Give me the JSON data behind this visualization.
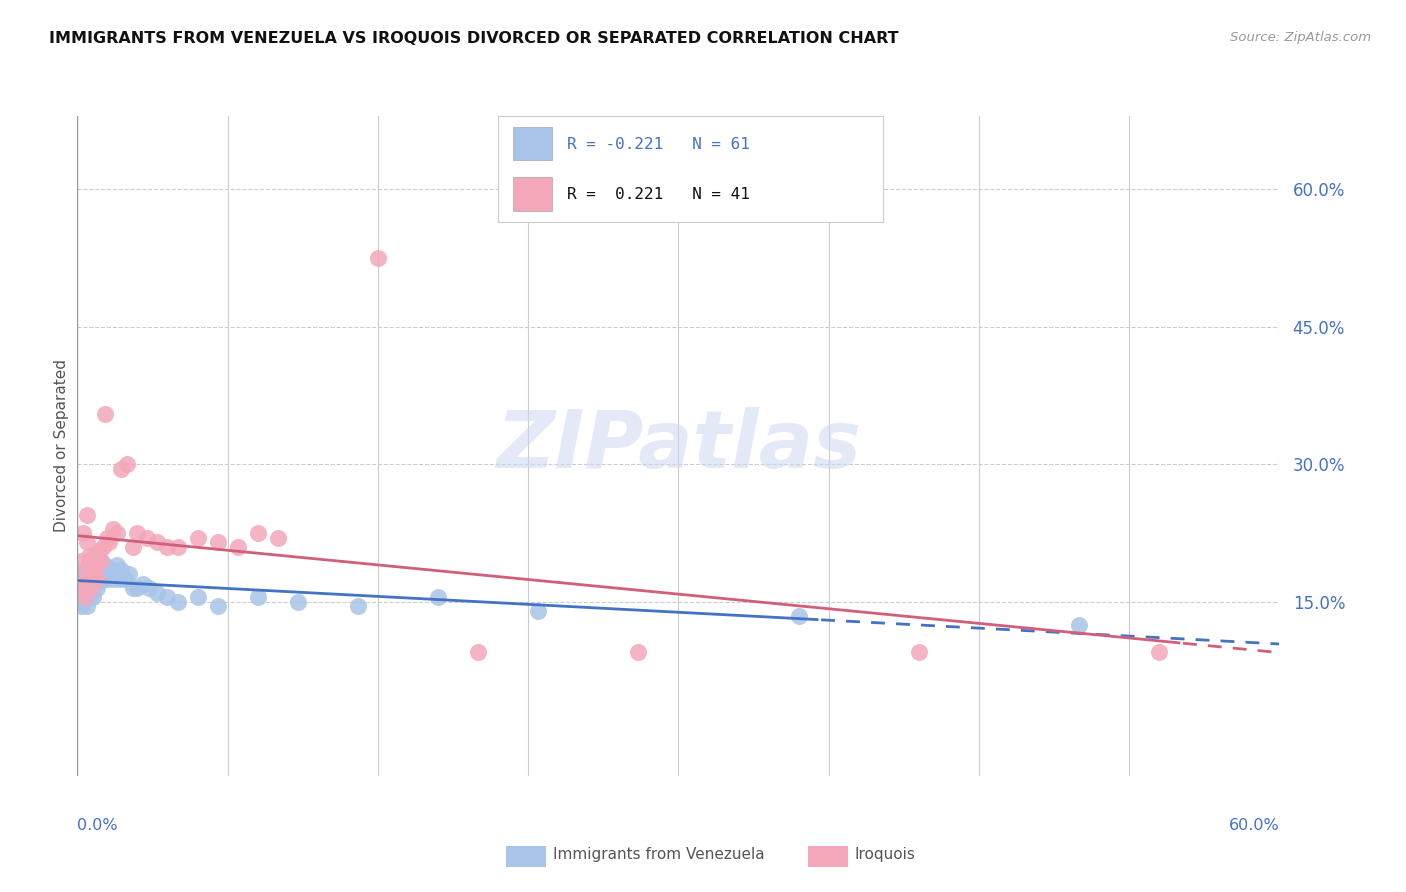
{
  "title": "IMMIGRANTS FROM VENEZUELA VS IROQUOIS DIVORCED OR SEPARATED CORRELATION CHART",
  "source": "Source: ZipAtlas.com",
  "ylabel": "Divorced or Separated",
  "xlim": [
    0.0,
    0.6
  ],
  "ylim": [
    -0.04,
    0.68
  ],
  "right_yticks": [
    0.15,
    0.3,
    0.45,
    0.6
  ],
  "right_yticklabels": [
    "15.0%",
    "30.0%",
    "45.0%",
    "60.0%"
  ],
  "legend_r1": "R = -0.221   N = 61",
  "legend_r2": "R =  0.221   N = 41",
  "blue_color": "#a8c4e8",
  "pink_color": "#f4a7b9",
  "blue_line_color": "#4472c4",
  "pink_line_color": "#d0607a",
  "venezuela_x": [
    0.001,
    0.002,
    0.002,
    0.002,
    0.003,
    0.003,
    0.003,
    0.004,
    0.004,
    0.004,
    0.005,
    0.005,
    0.005,
    0.006,
    0.006,
    0.006,
    0.007,
    0.007,
    0.008,
    0.008,
    0.008,
    0.009,
    0.009,
    0.01,
    0.01,
    0.01,
    0.011,
    0.011,
    0.012,
    0.012,
    0.013,
    0.013,
    0.014,
    0.014,
    0.015,
    0.015,
    0.016,
    0.017,
    0.018,
    0.019,
    0.02,
    0.021,
    0.022,
    0.024,
    0.026,
    0.028,
    0.03,
    0.033,
    0.036,
    0.04,
    0.045,
    0.05,
    0.06,
    0.07,
    0.09,
    0.11,
    0.14,
    0.18,
    0.23,
    0.36,
    0.5
  ],
  "venezuela_y": [
    0.155,
    0.145,
    0.165,
    0.175,
    0.15,
    0.16,
    0.18,
    0.155,
    0.17,
    0.185,
    0.145,
    0.16,
    0.175,
    0.165,
    0.18,
    0.195,
    0.16,
    0.175,
    0.155,
    0.17,
    0.185,
    0.17,
    0.19,
    0.165,
    0.175,
    0.195,
    0.175,
    0.185,
    0.18,
    0.195,
    0.185,
    0.175,
    0.19,
    0.18,
    0.185,
    0.175,
    0.18,
    0.185,
    0.175,
    0.18,
    0.19,
    0.175,
    0.185,
    0.175,
    0.18,
    0.165,
    0.165,
    0.17,
    0.165,
    0.16,
    0.155,
    0.15,
    0.155,
    0.145,
    0.155,
    0.15,
    0.145,
    0.155,
    0.14,
    0.135,
    0.125
  ],
  "iroquois_x": [
    0.001,
    0.002,
    0.003,
    0.003,
    0.004,
    0.005,
    0.005,
    0.006,
    0.006,
    0.007,
    0.007,
    0.008,
    0.009,
    0.01,
    0.01,
    0.011,
    0.012,
    0.013,
    0.014,
    0.015,
    0.016,
    0.018,
    0.02,
    0.022,
    0.025,
    0.028,
    0.03,
    0.035,
    0.04,
    0.045,
    0.05,
    0.06,
    0.07,
    0.08,
    0.09,
    0.1,
    0.15,
    0.2,
    0.28,
    0.42,
    0.54
  ],
  "iroquois_y": [
    0.165,
    0.195,
    0.225,
    0.175,
    0.155,
    0.245,
    0.215,
    0.19,
    0.2,
    0.175,
    0.165,
    0.18,
    0.2,
    0.19,
    0.175,
    0.205,
    0.195,
    0.21,
    0.355,
    0.22,
    0.215,
    0.23,
    0.225,
    0.295,
    0.3,
    0.21,
    0.225,
    0.22,
    0.215,
    0.21,
    0.21,
    0.22,
    0.215,
    0.21,
    0.225,
    0.22,
    0.525,
    0.095,
    0.095,
    0.095,
    0.095
  ]
}
